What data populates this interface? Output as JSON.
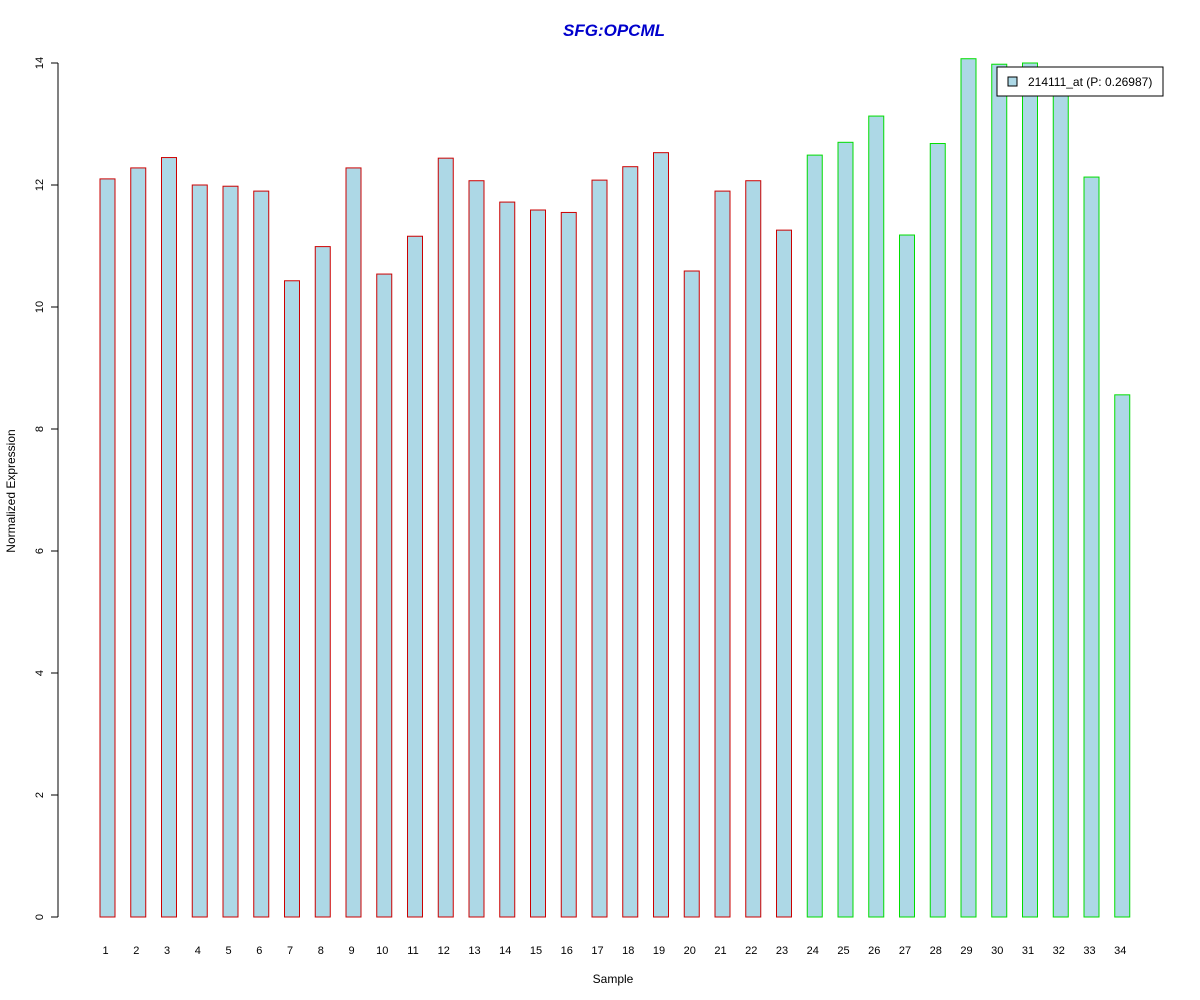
{
  "chart_data": {
    "type": "bar",
    "title": "SFG:OPCML",
    "xlabel": "Sample",
    "ylabel": "Normalized Expression",
    "ylim": [
      0,
      14
    ],
    "yticks": [
      0,
      2,
      4,
      6,
      8,
      10,
      12,
      14
    ],
    "categories": [
      "1",
      "2",
      "3",
      "4",
      "5",
      "6",
      "7",
      "8",
      "9",
      "10",
      "11",
      "12",
      "13",
      "14",
      "15",
      "16",
      "17",
      "18",
      "19",
      "20",
      "21",
      "22",
      "23",
      "24",
      "25",
      "26",
      "27",
      "28",
      "29",
      "30",
      "31",
      "32",
      "33",
      "34"
    ],
    "series": [
      {
        "name": "214111_at (P: 0.26987)",
        "values": [
          12.1,
          12.28,
          12.45,
          12.0,
          11.98,
          11.9,
          10.43,
          10.99,
          12.28,
          10.54,
          11.16,
          12.44,
          12.07,
          11.72,
          11.59,
          11.55,
          12.08,
          12.3,
          12.53,
          10.59,
          11.9,
          12.07,
          11.26,
          12.49,
          12.7,
          13.13,
          11.18,
          12.68,
          14.07,
          13.98,
          14.0,
          13.6,
          12.13,
          8.56
        ],
        "groups": [
          "A",
          "A",
          "A",
          "A",
          "A",
          "A",
          "A",
          "A",
          "A",
          "A",
          "A",
          "A",
          "A",
          "A",
          "A",
          "A",
          "A",
          "A",
          "A",
          "A",
          "A",
          "A",
          "A",
          "B",
          "B",
          "B",
          "B",
          "B",
          "B",
          "B",
          "B",
          "B",
          "B",
          "B"
        ]
      }
    ],
    "legend": {
      "label": "214111_at (P: 0.26987)",
      "position": "top-right"
    },
    "grid": false
  },
  "colors": {
    "title": "#0000cc",
    "bar_fill": "#add8e6",
    "group_A_border": "#cc0000",
    "group_B_border": "#00dd00",
    "axis": "#000000"
  }
}
